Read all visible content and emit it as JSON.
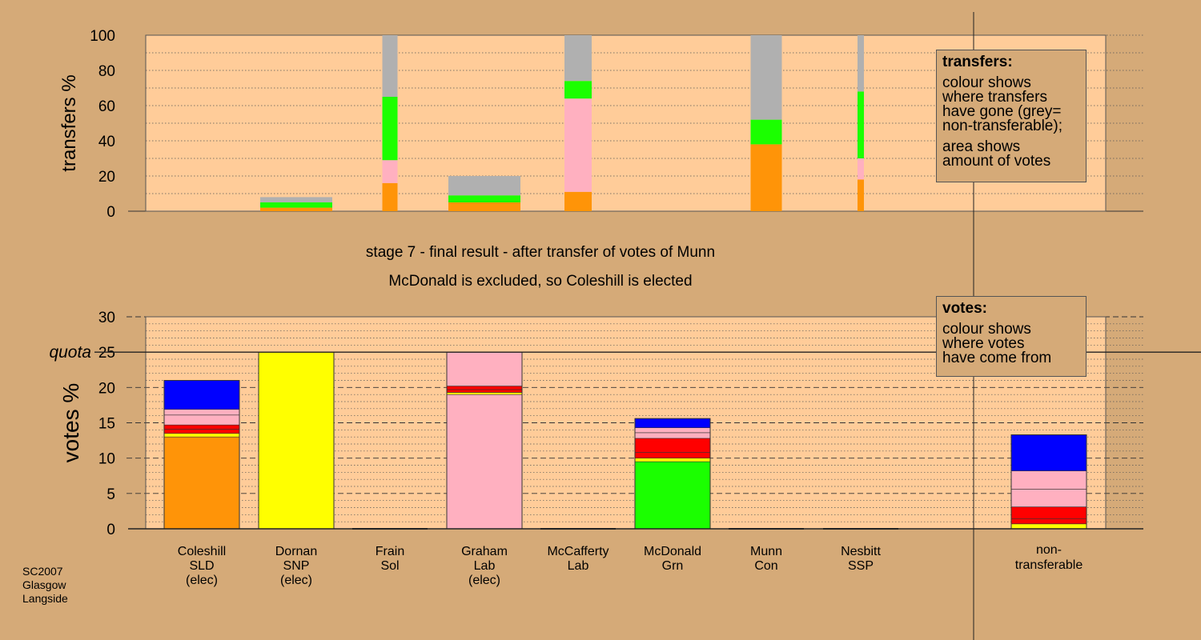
{
  "captions": {
    "stage": "stage 7 - final result - after transfer of votes of Munn",
    "result": "McDonald is excluded, so Coleshill is elected"
  },
  "footer": [
    "SC2007",
    "Glasgow",
    "Langside"
  ],
  "legend_transfers": {
    "title": "transfers:",
    "lines_a": [
      "colour shows",
      "where transfers",
      "have gone (grey=",
      "non-transferable);"
    ],
    "lines_b": [
      "area shows",
      "amount of votes"
    ]
  },
  "legend_votes": {
    "title": "votes:",
    "lines": [
      "colour shows",
      "where votes",
      "have come from"
    ]
  },
  "colors": {
    "SLD": "#FF9408",
    "SNP": "#FFFF00",
    "Lab": "#FFB0C0",
    "Grn": "#1BFF00",
    "Con": "#0000FF",
    "Sol": "#FF0000",
    "SSP": "#FF0000",
    "Lab2": "#FFB0C0",
    "nontransferable": "#B0B0B0",
    "plot_bg": "#FFCC99",
    "page_bg": "#D5AA78"
  },
  "chart_data": [
    {
      "type": "bar",
      "subtype": "stacked-width-encoded",
      "ylabel": "transfers %",
      "ylim": [
        0,
        100
      ],
      "yticks": [
        0,
        20,
        40,
        60,
        80,
        100
      ],
      "categories": [
        "Coleshill SLD (elec)",
        "Dornan SNP (elec)",
        "Frain Sol",
        "Graham Lab (elec)",
        "McCafferty Lab",
        "McDonald Grn",
        "Munn Con",
        "Nesbitt SSP"
      ],
      "bars": [
        {
          "category": "Dornan SNP (elec)",
          "segments": [
            {
              "to": "SLD",
              "value": 2
            },
            {
              "to": "Grn",
              "value": 3
            },
            {
              "to": "nontransferable",
              "value": 3
            }
          ]
        },
        {
          "category": "Frain Sol",
          "segments": [
            {
              "to": "SLD",
              "value": 16
            },
            {
              "to": "Lab",
              "value": 13
            },
            {
              "to": "Grn",
              "value": 36
            },
            {
              "to": "nontransferable",
              "value": 35
            }
          ]
        },
        {
          "category": "Graham Lab (elec)",
          "segments": [
            {
              "to": "SLD",
              "value": 5
            },
            {
              "to": "Grn",
              "value": 4
            },
            {
              "to": "nontransferable",
              "value": 11
            }
          ]
        },
        {
          "category": "McCafferty Lab",
          "segments": [
            {
              "to": "SLD",
              "value": 11
            },
            {
              "to": "Lab",
              "value": 53
            },
            {
              "to": "Grn",
              "value": 10
            },
            {
              "to": "nontransferable",
              "value": 26
            }
          ]
        },
        {
          "category": "Munn Con",
          "segments": [
            {
              "to": "SLD",
              "value": 38
            },
            {
              "to": "Grn",
              "value": 14
            },
            {
              "to": "nontransferable",
              "value": 48
            }
          ]
        },
        {
          "category": "Nesbitt SSP",
          "segments": [
            {
              "to": "SLD",
              "value": 18
            },
            {
              "to": "Lab",
              "value": 12
            },
            {
              "to": "Grn",
              "value": 38
            },
            {
              "to": "nontransferable",
              "value": 32
            }
          ]
        }
      ]
    },
    {
      "type": "bar",
      "subtype": "stacked",
      "ylabel": "votes %",
      "ylim": [
        0,
        30
      ],
      "yticks": [
        0,
        5,
        10,
        15,
        20,
        25,
        30
      ],
      "quota": 25,
      "quota_label": "quota",
      "candidates": [
        {
          "name": "Coleshill",
          "party": "SLD",
          "note": "(elec)",
          "segments": [
            {
              "from": "SLD",
              "value": 13
            },
            {
              "from": "SNP",
              "value": 0.5
            },
            {
              "from": "Sol",
              "value": 0.6
            },
            {
              "from": "SSP",
              "value": 0.6
            },
            {
              "from": "Lab",
              "value": 1.4
            },
            {
              "from": "Lab2",
              "value": 0.8
            },
            {
              "from": "Con",
              "value": 4.1
            }
          ]
        },
        {
          "name": "Dornan",
          "party": "SNP",
          "note": "(elec)",
          "segments": [
            {
              "from": "SNP",
              "value": 25
            }
          ]
        },
        {
          "name": "Frain",
          "party": "Sol",
          "note": "",
          "segments": []
        },
        {
          "name": "Graham",
          "party": "Lab",
          "note": "(elec)",
          "segments": [
            {
              "from": "Lab",
              "value": 19
            },
            {
              "from": "SNP",
              "value": 0.3
            },
            {
              "from": "Sol",
              "value": 0.4
            },
            {
              "from": "SSP",
              "value": 0.5
            },
            {
              "from": "Lab2",
              "value": 4.8
            }
          ]
        },
        {
          "name": "McCafferty",
          "party": "Lab",
          "note": "",
          "segments": []
        },
        {
          "name": "McDonald",
          "party": "Grn",
          "note": "",
          "segments": [
            {
              "from": "Grn",
              "value": 9.5
            },
            {
              "from": "SNP",
              "value": 0.5
            },
            {
              "from": "Sol",
              "value": 0.8
            },
            {
              "from": "SSP",
              "value": 2
            },
            {
              "from": "Lab",
              "value": 0.8
            },
            {
              "from": "Lab2",
              "value": 0.7
            },
            {
              "from": "Con",
              "value": 1.3
            }
          ]
        },
        {
          "name": "Munn",
          "party": "Con",
          "note": "",
          "segments": []
        },
        {
          "name": "Nesbitt",
          "party": "SSP",
          "note": "",
          "segments": []
        }
      ],
      "nontransferable": {
        "label_lines": [
          "non-",
          "transferable"
        ],
        "segments": [
          {
            "from": "SNP",
            "value": 0.7
          },
          {
            "from": "Sol",
            "value": 0.7
          },
          {
            "from": "SSP",
            "value": 1.7
          },
          {
            "from": "Lab",
            "value": 2.5
          },
          {
            "from": "Lab2",
            "value": 2.6
          },
          {
            "from": "Con",
            "value": 5.1
          }
        ]
      }
    }
  ]
}
